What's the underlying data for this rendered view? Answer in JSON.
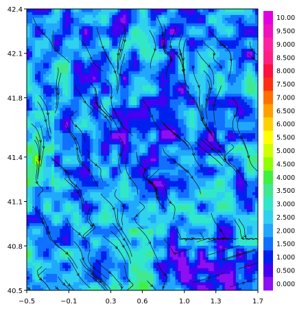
{
  "chart_data": {
    "type": "heatmap",
    "title": "",
    "xlabel": "",
    "ylabel": "",
    "xlim": [
      -0.5,
      1.7
    ],
    "ylim": [
      40.5,
      42.4
    ],
    "x_ticks": [
      -0.5,
      -0.1,
      0.3,
      0.6,
      1.0,
      1.3,
      1.7
    ],
    "x_tick_labels": [
      "−0.5",
      "−0.1",
      "0.3",
      "0.6",
      "1.0",
      "1.3",
      "1.7"
    ],
    "y_ticks": [
      40.5,
      40.8,
      41.1,
      41.4,
      41.8,
      42.1,
      42.4
    ],
    "y_tick_labels": [
      "40.5",
      "40.8",
      "41.1",
      "41.4",
      "41.8",
      "42.1",
      "42.4"
    ],
    "grid": false,
    "overlay": "streamlines",
    "legend": {
      "placement": "right",
      "levels": [
        "10.00",
        "9.500",
        "9.000",
        "8.500",
        "8.000",
        "7.500",
        "7.000",
        "6.500",
        "6.000",
        "5.500",
        "5.000",
        "4.500",
        "4.000",
        "3.500",
        "3.000",
        "2.500",
        "2.000",
        "1.500",
        "1.000",
        "0.500",
        "0.000"
      ],
      "colors": [
        "#e000e0",
        "#f010c0",
        "#ff20a0",
        "#ff2080",
        "#ff1040",
        "#ff3010",
        "#ff7000",
        "#ffa000",
        "#ffd000",
        "#ffff00",
        "#d0ff00",
        "#90ff00",
        "#40f040",
        "#40e890",
        "#30e8c8",
        "#30d0f0",
        "#20a8ff",
        "#1070ff",
        "#0020f0",
        "#4400f0",
        "#8c10f0"
      ]
    },
    "field_range": [
      0.0,
      10.0
    ],
    "field_dominant_range": [
      0.5,
      4.5
    ],
    "field_notes": "Mostly blue (1-2) and cyan (2.5-3.5) with purple low-value patches and green highs (4-5) near the western edge and south-center."
  }
}
